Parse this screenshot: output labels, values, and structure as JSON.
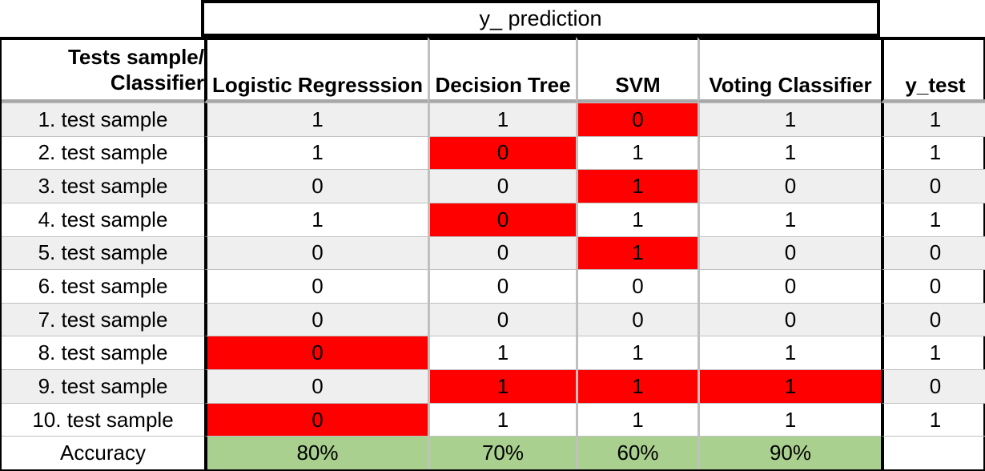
{
  "table": {
    "super_header": "y_ prediction",
    "corner_line1": "Tests sample/",
    "corner_line2": "Classifier",
    "columns": [
      "Logistic Regresssion",
      "Decision Tree",
      "SVM",
      "Voting Classifier",
      "y_test"
    ],
    "rows": [
      {
        "label": "1. test sample",
        "values": [
          "1",
          "1",
          "0",
          "1",
          "1"
        ],
        "wrong": [
          false,
          false,
          true,
          false
        ]
      },
      {
        "label": "2. test sample",
        "values": [
          "1",
          "0",
          "1",
          "1",
          "1"
        ],
        "wrong": [
          false,
          true,
          false,
          false
        ]
      },
      {
        "label": "3. test sample",
        "values": [
          "0",
          "0",
          "1",
          "0",
          "0"
        ],
        "wrong": [
          false,
          false,
          true,
          false
        ]
      },
      {
        "label": "4. test sample",
        "values": [
          "1",
          "0",
          "1",
          "1",
          "1"
        ],
        "wrong": [
          false,
          true,
          false,
          false
        ]
      },
      {
        "label": "5. test sample",
        "values": [
          "0",
          "0",
          "1",
          "0",
          "0"
        ],
        "wrong": [
          false,
          false,
          true,
          false
        ]
      },
      {
        "label": "6. test sample",
        "values": [
          "0",
          "0",
          "0",
          "0",
          "0"
        ],
        "wrong": [
          false,
          false,
          false,
          false
        ]
      },
      {
        "label": "7. test sample",
        "values": [
          "0",
          "0",
          "0",
          "0",
          "0"
        ],
        "wrong": [
          false,
          false,
          false,
          false
        ]
      },
      {
        "label": "8. test sample",
        "values": [
          "0",
          "1",
          "1",
          "1",
          "1"
        ],
        "wrong": [
          true,
          false,
          false,
          false
        ]
      },
      {
        "label": "9. test sample",
        "values": [
          "0",
          "1",
          "1",
          "1",
          "0"
        ],
        "wrong": [
          false,
          true,
          true,
          true
        ]
      },
      {
        "label": "10. test sample",
        "values": [
          "0",
          "1",
          "1",
          "1",
          "1"
        ],
        "wrong": [
          true,
          false,
          false,
          false
        ]
      }
    ],
    "accuracy_label": "Accuracy",
    "accuracy_values": [
      "80%",
      "70%",
      "60%",
      "90%",
      ""
    ]
  },
  "colors": {
    "wrong_prediction": "#ff0000",
    "accuracy_fill": "#a9d08e",
    "alternate_row": "#efefef"
  }
}
